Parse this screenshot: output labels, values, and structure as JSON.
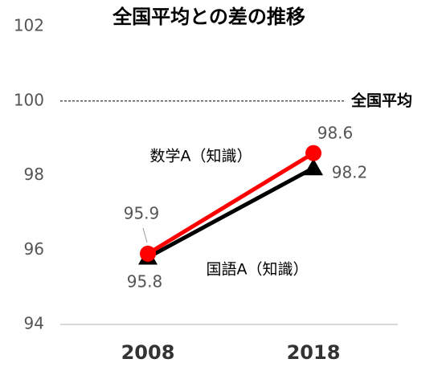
{
  "chart_data": {
    "type": "line",
    "title": "全国平均との差の推移",
    "categories": [
      "2008",
      "2018"
    ],
    "series": [
      {
        "name": "数学A（知識）",
        "color": "#ff0000",
        "marker": "circle",
        "values": [
          95.9,
          98.6
        ]
      },
      {
        "name": "国語A（知識）",
        "color": "#000000",
        "marker": "triangle",
        "values": [
          95.8,
          98.2
        ]
      }
    ],
    "reference_line": {
      "value": 100,
      "label": "全国平均"
    },
    "ylim": [
      94,
      102
    ],
    "yticks": [
      94,
      96,
      98,
      100,
      102
    ],
    "grid": false
  }
}
